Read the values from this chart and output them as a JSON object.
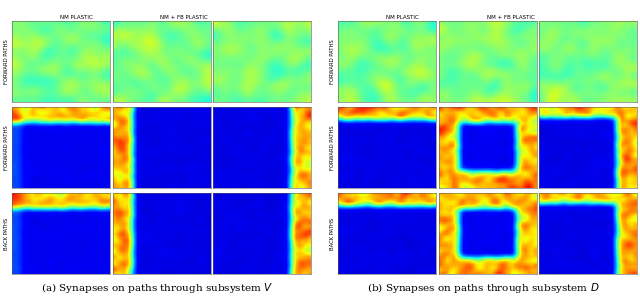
{
  "title_a": "(a) Synapses on paths through subsystem $V$",
  "title_b": "(b) Synapses on paths through subsystem $D$",
  "row_labels_left": [
    "FORWARD PATHS",
    "FORWARD PATHS",
    "BACK PATHS"
  ],
  "row_labels_right": [
    "FORWARD PATHS",
    "FORWARD PATHS",
    "BACK PATHS"
  ],
  "col_label_left": "NM PLASTIC",
  "col_label_left2": "NM + FB PLASTIC",
  "col_label_right": "NM PLASTIC",
  "col_label_right2": "NM + FB PLASTIC",
  "background_color": "#ffffff",
  "grid_size": 30,
  "seed": 42
}
